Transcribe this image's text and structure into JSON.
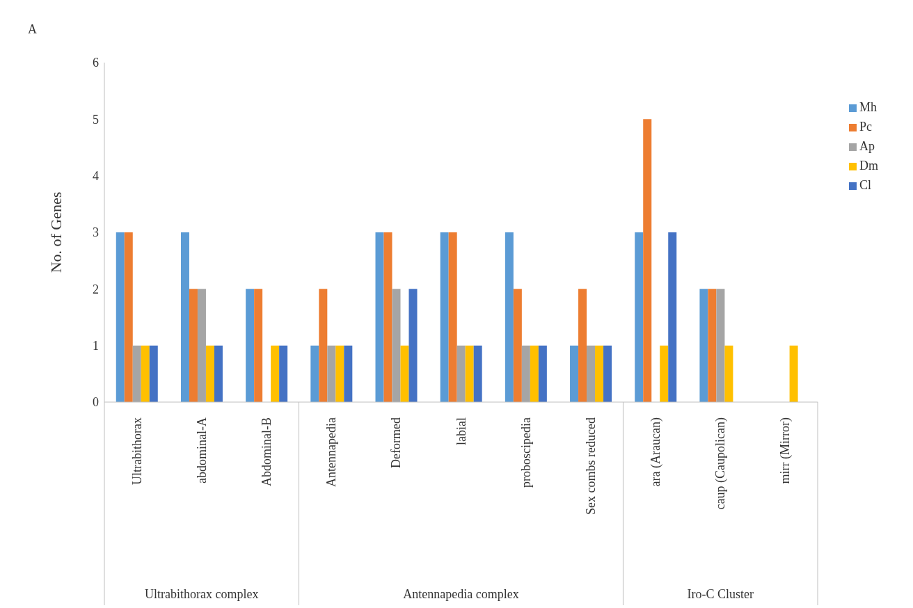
{
  "chart_data": {
    "type": "bar",
    "ylabel": "No. of Genes",
    "categories": [
      "Ultrabithorax",
      "abdominal-A",
      "Abdominal-B",
      "Antennapedia",
      "Deformed",
      "labial",
      "proboscipedia",
      "Sex combs reduced",
      "ara (Araucan)",
      "caup (Caupolican)",
      "mirr (Mirror)"
    ],
    "series": [
      {
        "name": "Mh",
        "color": "#5b9bd5",
        "values": [
          3,
          3,
          2,
          1,
          3,
          3,
          3,
          1,
          3,
          2,
          0
        ]
      },
      {
        "name": "Pc",
        "color": "#ed7d31",
        "values": [
          3,
          2,
          2,
          2,
          3,
          3,
          2,
          2,
          5,
          2,
          0
        ]
      },
      {
        "name": "Ap",
        "color": "#a5a5a5",
        "values": [
          1,
          2,
          0,
          1,
          2,
          1,
          1,
          1,
          0,
          2,
          0
        ]
      },
      {
        "name": "Dm",
        "color": "#ffc000",
        "values": [
          1,
          1,
          1,
          1,
          1,
          1,
          1,
          1,
          1,
          1,
          1
        ]
      },
      {
        "name": "Cl",
        "color": "#4472c4",
        "values": [
          1,
          1,
          1,
          1,
          2,
          1,
          1,
          1,
          3,
          0,
          0
        ]
      }
    ],
    "ylim": [
      0,
      6
    ],
    "yticks": [
      0,
      1,
      2,
      3,
      4,
      5,
      6
    ],
    "legend": "right",
    "annotations": [
      "A",
      "Ultrabithorax complex",
      "Antennapedia complex",
      "Iro-C Cluster"
    ]
  }
}
